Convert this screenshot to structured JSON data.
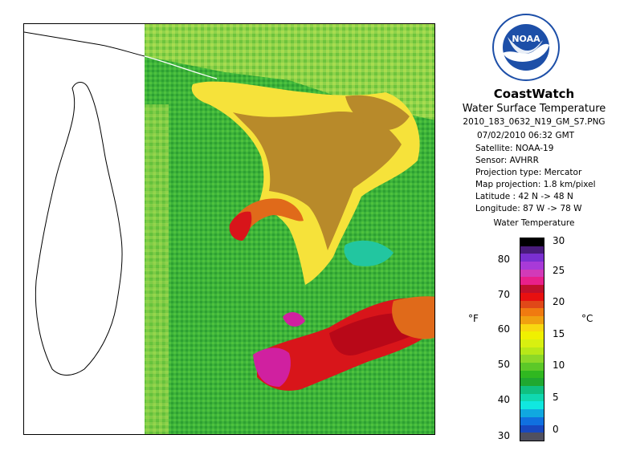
{
  "header": {
    "brand": "CoastWatch",
    "product": "Water Surface Temperature",
    "filename": "2010_183_0632_N19_GM_S7.PNG"
  },
  "metadata": {
    "datetime": "07/02/2010    06:32 GMT",
    "satellite": "Satellite: NOAA-19",
    "sensor": "Sensor: AVHRR",
    "projection_type": "Projection type:  Mercator",
    "map_projection": "Map projection: 1.8 km/pixel",
    "latitude": "Latitude : 42 N -> 48 N",
    "longitude": "Longitude: 87 W -> 78 W"
  },
  "legend": {
    "title": "Water Temperature",
    "unit_f": "°F",
    "unit_c": "°C",
    "ticks_f": [
      "80",
      "70",
      "60",
      "50",
      "40",
      "30"
    ],
    "ticks_c": [
      "30",
      "25",
      "20",
      "15",
      "10",
      "5",
      "0"
    ],
    "colors_top_to_bottom": [
      "#000000",
      "#4a1c7c",
      "#7a2fd0",
      "#a83ad8",
      "#d23ab8",
      "#e8208a",
      "#c0102c",
      "#e81010",
      "#e04818",
      "#f07a10",
      "#f0a010",
      "#f8d810",
      "#f0f000",
      "#d8f010",
      "#b8e818",
      "#8cd828",
      "#5cc828",
      "#30b820",
      "#20a830",
      "#10c080",
      "#10d8b0",
      "#10e8e0",
      "#10a8e0",
      "#1070e0",
      "#1848c0",
      "#505060"
    ]
  },
  "map": {
    "colors": {
      "land_green": "#3db33a",
      "land_light": "#8dd24a",
      "lake_yellow": "#f6e23a",
      "lake_olive": "#b88a2a",
      "lake_orange": "#e06a1a",
      "lake_red": "#d8151a",
      "lake_darkred": "#b80818",
      "lake_magenta": "#d020a0",
      "lake_teal": "#22c6a0",
      "coast_white": "#ffffff"
    }
  },
  "logo": {
    "text": "NOAA"
  }
}
